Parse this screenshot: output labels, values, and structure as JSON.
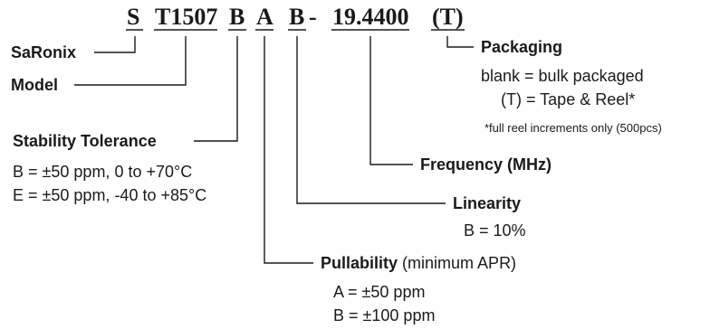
{
  "part_number": {
    "segments": [
      {
        "id": "saronix",
        "text": "S"
      },
      {
        "id": "model",
        "text": "T1507"
      },
      {
        "id": "stability",
        "text": "B"
      },
      {
        "id": "pullability",
        "text": "A"
      },
      {
        "id": "linearity",
        "text": "B"
      },
      {
        "id": "dash",
        "text": "-"
      },
      {
        "id": "frequency",
        "text": "19.4400"
      },
      {
        "id": "packaging",
        "text": "(T)"
      }
    ]
  },
  "fields": {
    "saronix": {
      "label": "SaRonix"
    },
    "model": {
      "label": "Model"
    },
    "stability": {
      "label": "Stability Tolerance",
      "options": [
        "B = ±50 ppm, 0 to +70°C",
        "E = ±50 ppm, -40 to +85°C"
      ]
    },
    "pullability": {
      "label": "Pullability",
      "qualifier": "(minimum APR)",
      "options": [
        "A = ±50 ppm",
        "B = ±100 ppm"
      ]
    },
    "linearity": {
      "label": "Linearity",
      "options": [
        "B = 10%"
      ]
    },
    "frequency": {
      "label": "Frequency (MHz)"
    },
    "packaging": {
      "label": "Packaging",
      "options": [
        "blank = bulk packaged",
        "(T) = Tape & Reel*"
      ],
      "footnote": "*full reel increments only (500pcs)"
    }
  }
}
